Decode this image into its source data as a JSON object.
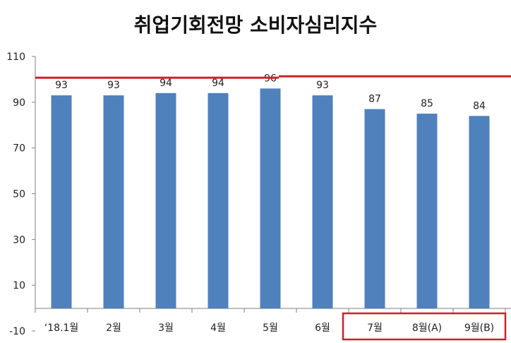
{
  "chart_data": {
    "type": "bar",
    "title": "취업기회전망 소비자심리지수",
    "categories": [
      "‘18.1월",
      "2월",
      "3월",
      "4월",
      "5월",
      "6월",
      "7월",
      "8월(A)",
      "9월(B)"
    ],
    "values": [
      93,
      93,
      94,
      94,
      96,
      93,
      87,
      85,
      84
    ],
    "yticks": [
      110,
      90,
      70,
      50,
      30,
      10,
      -10
    ],
    "ylim": [
      -10,
      110
    ],
    "reference_line": 101,
    "grid": false,
    "legend": "none",
    "colors": {
      "bar": "#4F81BD",
      "reference_line": "#CC2128",
      "highlight_box": "#CC2128",
      "axis": "#7F7F7F"
    },
    "highlighted_categories": [
      "7월",
      "8월(A)",
      "9월(B)"
    ]
  }
}
